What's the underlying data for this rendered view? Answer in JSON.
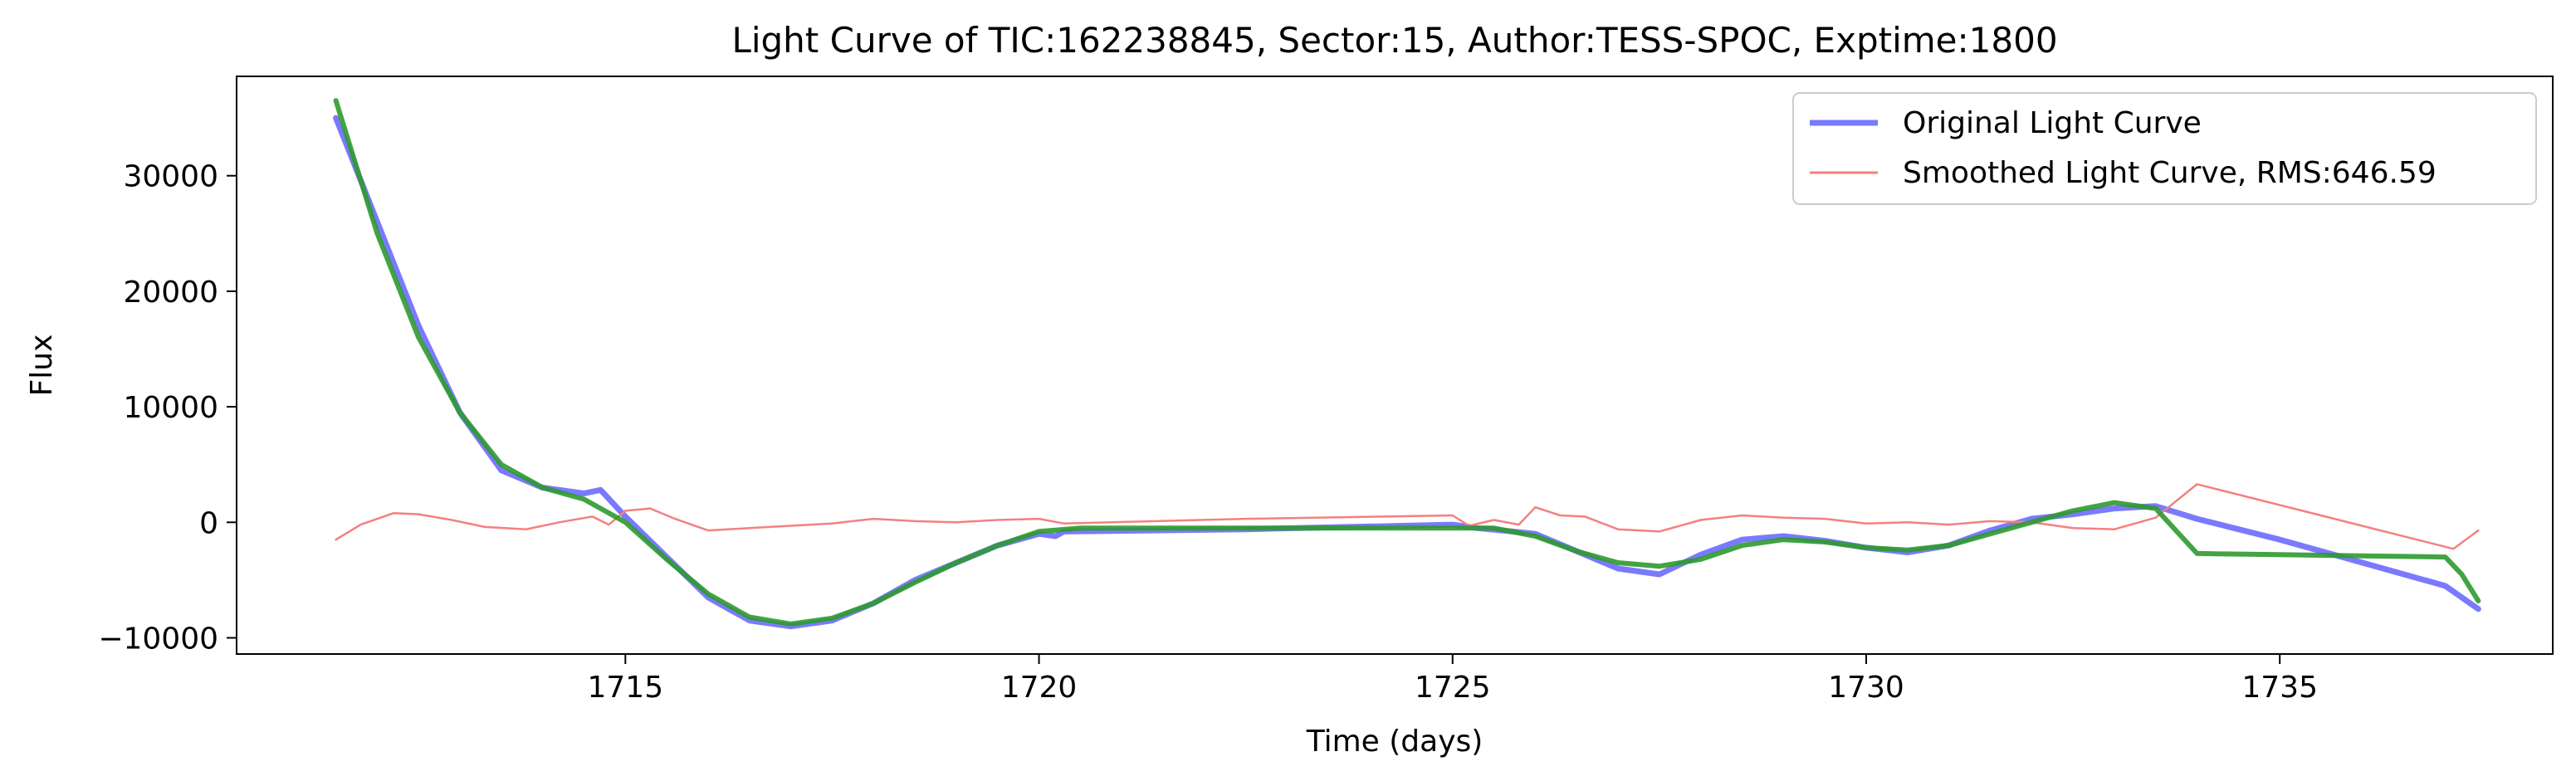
{
  "chart_data": {
    "type": "line",
    "title": "Light Curve of TIC:162238845, Sector:15, Author:TESS-SPOC, Exptime:1800",
    "xlabel": "Time (days)",
    "ylabel": "Flux",
    "xlim": [
      1710.3,
      1738.3
    ],
    "ylim": [
      -11400,
      38600
    ],
    "x_ticks": [
      1715,
      1720,
      1725,
      1730,
      1735
    ],
    "x_tick_labels": [
      "1715",
      "1720",
      "1725",
      "1730",
      "1735"
    ],
    "y_ticks": [
      -10000,
      0,
      10000,
      20000,
      30000
    ],
    "y_tick_labels": [
      "−10000",
      "0",
      "10000",
      "20000",
      "30000"
    ],
    "grid": false,
    "legend": {
      "placement": "upper right",
      "entries": [
        {
          "label": "Original Light Curve",
          "color": "#7a7aff",
          "series": 0
        },
        {
          "label": "Smoothed Light Curve, RMS:646.59",
          "color": "#f48080",
          "series": 1
        }
      ]
    },
    "series": [
      {
        "name": "Original Light Curve",
        "color": "#7a7aff",
        "x": [
          1711.5,
          1712.0,
          1712.5,
          1713.0,
          1713.5,
          1714.0,
          1714.5,
          1714.7,
          1715.0,
          1715.5,
          1716.0,
          1716.5,
          1717.0,
          1717.5,
          1718.0,
          1718.5,
          1719.0,
          1719.5,
          1720.0,
          1720.2,
          1720.3,
          1722.5,
          1725.0,
          1725.3,
          1725.6,
          1726.0,
          1726.5,
          1727.0,
          1727.5,
          1728.0,
          1728.5,
          1729.0,
          1729.5,
          1730.0,
          1730.5,
          1731.0,
          1731.5,
          1732.0,
          1732.5,
          1733.0,
          1733.5,
          1734.0,
          1735.0,
          1736.0,
          1737.0,
          1737.4
        ],
        "y": [
          35000,
          26000,
          17000,
          9500,
          4500,
          3000,
          2500,
          2800,
          500,
          -3000,
          -6500,
          -8500,
          -9000,
          -8500,
          -7000,
          -5000,
          -3500,
          -2000,
          -1000,
          -1200,
          -800,
          -600,
          -200,
          -500,
          -700,
          -1000,
          -2500,
          -4000,
          -4500,
          -2800,
          -1500,
          -1200,
          -1600,
          -2200,
          -2600,
          -2000,
          -700,
          300,
          700,
          1200,
          1400,
          300,
          -1500,
          -3500,
          -5500,
          -7500
        ]
      },
      {
        "name": "Smoothed Light Curve, RMS:646.59",
        "color": "#f48080",
        "x": [
          1711.5,
          1711.8,
          1712.2,
          1712.5,
          1712.9,
          1713.3,
          1713.8,
          1714.2,
          1714.6,
          1714.8,
          1715.0,
          1715.3,
          1715.6,
          1716.0,
          1716.5,
          1717.0,
          1717.5,
          1718.0,
          1718.5,
          1719.0,
          1719.5,
          1720.0,
          1720.3,
          1722.5,
          1725.0,
          1725.2,
          1725.5,
          1725.8,
          1726.0,
          1726.3,
          1726.6,
          1727.0,
          1727.5,
          1728.0,
          1728.5,
          1729.0,
          1729.5,
          1730.0,
          1730.5,
          1731.0,
          1731.5,
          1732.0,
          1732.5,
          1733.0,
          1733.5,
          1734.0,
          1737.1,
          1737.4
        ],
        "y": [
          -1500,
          -200,
          800,
          700,
          200,
          -400,
          -600,
          0,
          500,
          -200,
          1000,
          1200,
          300,
          -700,
          -500,
          -300,
          -100,
          300,
          100,
          0,
          200,
          300,
          -100,
          300,
          600,
          -300,
          200,
          -200,
          1300,
          600,
          500,
          -600,
          -800,
          200,
          600,
          400,
          300,
          -100,
          0,
          -200,
          100,
          0,
          -500,
          -600,
          400,
          3300,
          -2300,
          -700
        ]
      },
      {
        "name": "",
        "color": "#2e9a2e",
        "x": [
          1711.5,
          1712.0,
          1712.5,
          1713.0,
          1713.5,
          1714.0,
          1714.5,
          1715.0,
          1715.5,
          1716.0,
          1716.5,
          1717.0,
          1717.5,
          1718.0,
          1718.5,
          1719.0,
          1719.5,
          1720.0,
          1720.5,
          1722.5,
          1725.0,
          1725.5,
          1726.0,
          1726.5,
          1727.0,
          1727.5,
          1728.0,
          1728.5,
          1729.0,
          1729.5,
          1730.0,
          1730.5,
          1731.0,
          1731.5,
          1732.0,
          1732.5,
          1733.0,
          1733.5,
          1734.0,
          1735.0,
          1736.0,
          1737.0,
          1737.2,
          1737.4
        ],
        "y": [
          36500,
          25000,
          16000,
          9500,
          5000,
          3000,
          2000,
          0,
          -3200,
          -6200,
          -8200,
          -8800,
          -8300,
          -7000,
          -5200,
          -3500,
          -2000,
          -800,
          -500,
          -500,
          -500,
          -500,
          -1200,
          -2500,
          -3500,
          -3800,
          -3200,
          -2000,
          -1500,
          -1700,
          -2200,
          -2400,
          -2000,
          -1000,
          0,
          1000,
          1700,
          1200,
          -2700,
          -2800,
          -2900,
          -3000,
          -4500,
          -6800
        ]
      }
    ]
  }
}
